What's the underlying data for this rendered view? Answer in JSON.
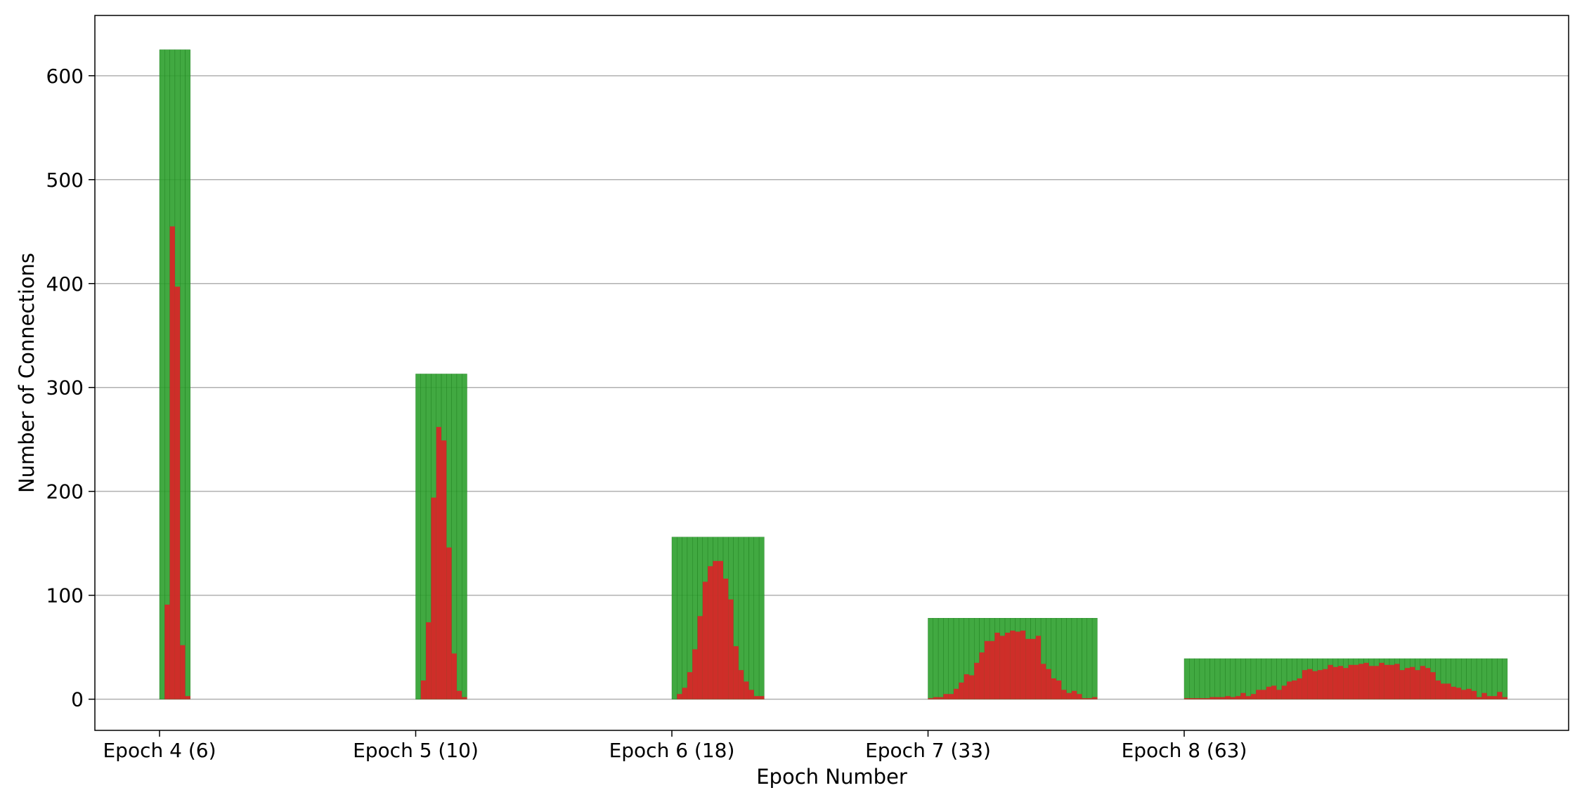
{
  "chart_data": {
    "type": "bar",
    "title": "",
    "xlabel": "Epoch Number",
    "ylabel": "Number of Connections",
    "ylim": [
      -30,
      658
    ],
    "yticks": [
      0,
      100,
      200,
      300,
      400,
      500,
      600
    ],
    "grid": "horizontal",
    "colors": {
      "total": "#2ca02c",
      "active": "#d62728"
    },
    "groups": [
      {
        "label": "Epoch 4 (6)",
        "total": 625,
        "active": [
          0,
          91,
          455,
          397,
          52,
          3
        ]
      },
      {
        "label": "Epoch 5 (10)",
        "total": 313,
        "active": [
          0,
          18,
          74,
          194,
          262,
          249,
          146,
          44,
          8,
          2
        ]
      },
      {
        "label": "Epoch 6 (18)",
        "total": 156,
        "active": [
          0,
          5,
          11,
          26,
          48,
          80,
          113,
          128,
          133,
          133,
          116,
          96,
          51,
          28,
          17,
          9,
          3,
          3
        ]
      },
      {
        "label": "Epoch 7 (33)",
        "total": 78,
        "active": [
          1,
          2,
          2,
          5,
          5,
          10,
          16,
          24,
          23,
          35,
          45,
          56,
          56,
          64,
          61,
          64,
          66,
          65,
          66,
          58,
          58,
          61,
          34,
          29,
          20,
          18,
          9,
          6,
          8,
          5,
          1,
          1,
          2
        ]
      },
      {
        "label": "Epoch 8 (63)",
        "total": 39,
        "active": [
          1,
          1,
          1,
          1,
          1,
          2,
          2,
          2,
          3,
          2,
          3,
          6,
          3,
          5,
          9,
          9,
          12,
          13,
          9,
          13,
          17,
          18,
          20,
          28,
          29,
          27,
          28,
          29,
          33,
          31,
          32,
          30,
          33,
          33,
          34,
          35,
          32,
          32,
          35,
          33,
          33,
          34,
          28,
          30,
          31,
          28,
          32,
          30,
          26,
          18,
          15,
          15,
          12,
          11,
          9,
          10,
          8,
          2,
          6,
          3,
          3,
          7,
          2
        ]
      }
    ]
  }
}
